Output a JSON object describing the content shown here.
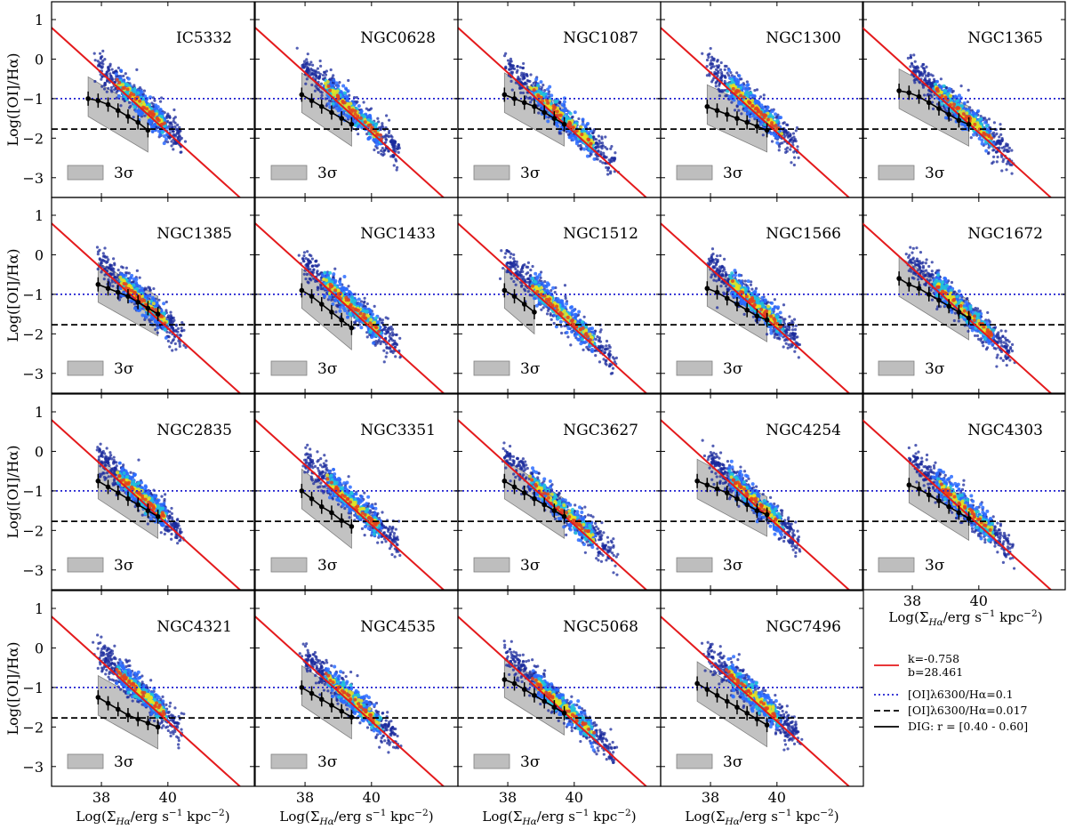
{
  "chart_data": {
    "type": "scatter",
    "layout": "4x5 grid of panels",
    "panel_names": [
      "IC5332",
      "NGC0628",
      "NGC1087",
      "NGC1300",
      "NGC1365",
      "NGC1385",
      "NGC1433",
      "NGC1512",
      "NGC1566",
      "NGC1672",
      "NGC2835",
      "NGC3351",
      "NGC3627",
      "NGC4254",
      "NGC4303",
      "NGC4321",
      "NGC4535",
      "NGC5068",
      "NGC7496"
    ],
    "xlabel": "Log(Σ_Hα/erg s⁻¹ kpc⁻²)",
    "xlabel_parts": {
      "pre": "Log(Σ",
      "sub": "Hα",
      "mid": "/erg s",
      "sup1": "−1",
      "mid2": " kpc",
      "sup2": "−2",
      "post": ")"
    },
    "ylabel": "Log([OI]/Hα)",
    "xlim": [
      36.5,
      42.6
    ],
    "ylim": [
      -3.5,
      1.45
    ],
    "xticks": [
      "38",
      "40"
    ],
    "xtick_values": [
      38,
      40
    ],
    "yticks": [
      "1",
      "0",
      "−1",
      "−2",
      "−3"
    ],
    "ytick_values": [
      1,
      0,
      -1,
      -2,
      -3
    ],
    "sigma_label": "3σ",
    "fit_line": {
      "k": -0.758,
      "b": 28.461,
      "color": "#e41a1c"
    },
    "hlines": [
      {
        "y": -1.0,
        "label": "[OI]λ6300/Hα=0.1",
        "style": "dotted",
        "color": "#1f1fd1"
      },
      {
        "y": -1.77,
        "label": "[OI]λ6300/Hα=0.017",
        "style": "dashed",
        "color": "#000000"
      }
    ],
    "dig_label": "DIG: r = [0.40 - 0.60]",
    "legend": [
      {
        "key": "fit",
        "lines": [
          "k=-0.758",
          "b=28.461"
        ],
        "color": "#e41a1c",
        "style": "solid"
      },
      {
        "key": "oi01",
        "lines": [
          "[OI]λ6300/Hα=0.1"
        ],
        "color": "#1f1fd1",
        "style": "dotted"
      },
      {
        "key": "oi0017",
        "lines": [
          "[OI]λ6300/Hα=0.017"
        ],
        "color": "#000000",
        "style": "dashed"
      },
      {
        "key": "dig",
        "lines": [
          "DIG: r = [0.40 - 0.60]"
        ],
        "color": "#000000",
        "style": "solid"
      }
    ],
    "dig_profiles": [
      {
        "x": [
          37.6,
          37.9,
          38.2,
          38.5,
          38.8,
          39.1,
          39.4
        ],
        "y": [
          -1.0,
          -1.05,
          -1.15,
          -1.3,
          -1.45,
          -1.6,
          -1.8
        ]
      },
      {
        "x": [
          37.9,
          38.2,
          38.5,
          38.8,
          39.1,
          39.4
        ],
        "y": [
          -0.9,
          -1.05,
          -1.2,
          -1.35,
          -1.5,
          -1.65
        ]
      },
      {
        "x": [
          37.9,
          38.2,
          38.5,
          38.8,
          39.1,
          39.4,
          39.7
        ],
        "y": [
          -0.9,
          -1.0,
          -1.1,
          -1.2,
          -1.35,
          -1.5,
          -1.65
        ]
      },
      {
        "x": [
          37.9,
          38.2,
          38.5,
          38.8,
          39.1,
          39.4,
          39.7
        ],
        "y": [
          -1.2,
          -1.3,
          -1.4,
          -1.5,
          -1.6,
          -1.7,
          -1.8
        ]
      },
      {
        "x": [
          37.6,
          37.9,
          38.2,
          38.5,
          38.8,
          39.1,
          39.4,
          39.7
        ],
        "y": [
          -0.8,
          -0.85,
          -0.95,
          -1.1,
          -1.25,
          -1.4,
          -1.55,
          -1.65
        ]
      },
      {
        "x": [
          37.9,
          38.2,
          38.5,
          38.8,
          39.1,
          39.4,
          39.7
        ],
        "y": [
          -0.75,
          -0.85,
          -0.95,
          -1.05,
          -1.2,
          -1.35,
          -1.5
        ]
      },
      {
        "x": [
          37.9,
          38.2,
          38.5,
          38.8,
          39.1,
          39.4
        ],
        "y": [
          -0.9,
          -1.05,
          -1.25,
          -1.45,
          -1.65,
          -1.85
        ]
      },
      {
        "x": [
          37.9,
          38.2,
          38.5,
          38.8
        ],
        "y": [
          -0.9,
          -1.05,
          -1.25,
          -1.45
        ]
      },
      {
        "x": [
          37.9,
          38.2,
          38.5,
          38.8,
          39.1,
          39.4,
          39.7
        ],
        "y": [
          -0.85,
          -0.95,
          -1.1,
          -1.25,
          -1.4,
          -1.55,
          -1.65
        ]
      },
      {
        "x": [
          37.6,
          37.9,
          38.2,
          38.5,
          38.8,
          39.1,
          39.4,
          39.7
        ],
        "y": [
          -0.6,
          -0.75,
          -0.85,
          -1.0,
          -1.15,
          -1.3,
          -1.45,
          -1.6
        ]
      },
      {
        "x": [
          37.9,
          38.2,
          38.5,
          38.8,
          39.1,
          39.4,
          39.7
        ],
        "y": [
          -0.75,
          -0.9,
          -1.05,
          -1.2,
          -1.35,
          -1.5,
          -1.65
        ]
      },
      {
        "x": [
          37.9,
          38.2,
          38.5,
          38.8,
          39.1,
          39.4
        ],
        "y": [
          -1.0,
          -1.2,
          -1.4,
          -1.55,
          -1.75,
          -1.9
        ]
      },
      {
        "x": [
          37.9,
          38.2,
          38.5,
          38.8,
          39.1,
          39.4,
          39.7
        ],
        "y": [
          -0.75,
          -0.9,
          -1.05,
          -1.2,
          -1.35,
          -1.5,
          -1.65
        ]
      },
      {
        "x": [
          37.6,
          37.9,
          38.2,
          38.5,
          38.8,
          39.1,
          39.4,
          39.7
        ],
        "y": [
          -0.75,
          -0.85,
          -0.95,
          -1.05,
          -1.2,
          -1.35,
          -1.5,
          -1.6
        ]
      },
      {
        "x": [
          37.9,
          38.2,
          38.5,
          38.8,
          39.1,
          39.4,
          39.7
        ],
        "y": [
          -0.85,
          -0.95,
          -1.1,
          -1.25,
          -1.4,
          -1.55,
          -1.7
        ]
      },
      {
        "x": [
          37.9,
          38.2,
          38.5,
          38.8,
          39.1,
          39.4,
          39.7
        ],
        "y": [
          -1.25,
          -1.4,
          -1.55,
          -1.7,
          -1.8,
          -1.9,
          -2.0
        ]
      },
      {
        "x": [
          37.9,
          38.2,
          38.5,
          38.8,
          39.1,
          39.4
        ],
        "y": [
          -1.0,
          -1.15,
          -1.3,
          -1.45,
          -1.6,
          -1.75
        ]
      },
      {
        "x": [
          37.9,
          38.2,
          38.5,
          38.8,
          39.1,
          39.4,
          39.7
        ],
        "y": [
          -0.8,
          -0.9,
          -1.05,
          -1.2,
          -1.35,
          -1.5,
          -1.65
        ]
      },
      {
        "x": [
          37.6,
          37.9,
          38.2,
          38.5,
          38.8,
          39.1,
          39.4,
          39.7
        ],
        "y": [
          -0.9,
          -1.05,
          -1.2,
          -1.35,
          -1.5,
          -1.65,
          -1.8,
          -1.95
        ]
      }
    ],
    "grid": false
  }
}
